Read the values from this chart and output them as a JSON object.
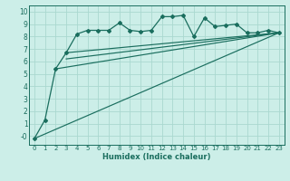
{
  "xlabel": "Humidex (Indice chaleur)",
  "bg_color": "#cceee8",
  "grid_color": "#aad8d0",
  "line_color": "#1a6e5e",
  "xlim": [
    -0.5,
    23.5
  ],
  "ylim": [
    -0.7,
    10.5
  ],
  "yticks": [
    0,
    1,
    2,
    3,
    4,
    5,
    6,
    7,
    8,
    9,
    10
  ],
  "ytick_labels": [
    "-0",
    "1",
    "2",
    "3",
    "4",
    "5",
    "6",
    "7",
    "8",
    "9",
    "10"
  ],
  "xticks": [
    0,
    1,
    2,
    3,
    4,
    5,
    6,
    7,
    8,
    9,
    10,
    11,
    12,
    13,
    14,
    15,
    16,
    17,
    18,
    19,
    20,
    21,
    22,
    23
  ],
  "series_markers": {
    "x": [
      0,
      1,
      2,
      3,
      4,
      5,
      6,
      7,
      8,
      9,
      10,
      11,
      12,
      13,
      14,
      15,
      16,
      17,
      18,
      19,
      20,
      21,
      22,
      23
    ],
    "y": [
      -0.2,
      1.3,
      5.4,
      6.7,
      8.2,
      8.5,
      8.5,
      8.5,
      9.1,
      8.5,
      8.4,
      8.5,
      9.6,
      9.6,
      9.7,
      8.0,
      9.5,
      8.8,
      8.9,
      9.0,
      8.3,
      8.3,
      8.5,
      8.3
    ]
  },
  "regression_lines": [
    {
      "x": [
        0,
        23
      ],
      "y": [
        -0.2,
        8.3
      ]
    },
    {
      "x": [
        2,
        23
      ],
      "y": [
        5.4,
        8.3
      ]
    },
    {
      "x": [
        3,
        23
      ],
      "y": [
        6.7,
        8.3
      ]
    },
    {
      "x": [
        3,
        23
      ],
      "y": [
        6.2,
        8.3
      ]
    }
  ],
  "font_size_tick": 5.0,
  "font_size_xlabel": 6.0
}
